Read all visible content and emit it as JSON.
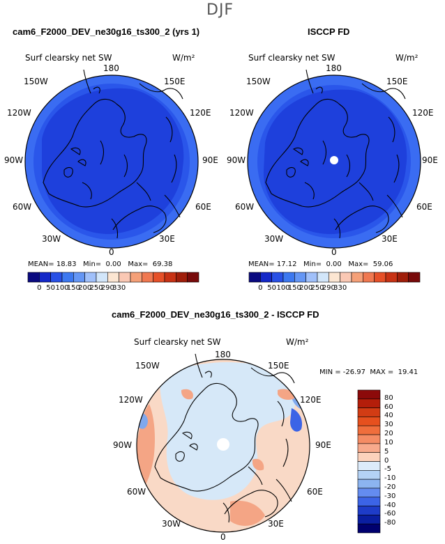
{
  "season_title": "DJF",
  "panels": [
    {
      "title": "cam6_F2000_DEV_ne30g16_ts300_2 (yrs 1)",
      "field_label": "Surf clearsky net SW",
      "units": "W/m²",
      "stats": {
        "mean_label": "MEAN=",
        "mean": "18.83",
        "min_label": "Min=",
        "min": "0.00",
        "max_label": "Max=",
        "max": "69.38"
      },
      "has_pole_hole": false
    },
    {
      "title": "ISCCP FD",
      "field_label": "Surf clearsky net SW",
      "units": "W/m²",
      "stats": {
        "mean_label": "MEAN=",
        "mean": "17.12",
        "min_label": "Min=",
        "min": "0.00",
        "max_label": "Max=",
        "max": "59.06"
      },
      "has_pole_hole": true
    }
  ],
  "colorbar_top": {
    "tick_labels": [
      "0",
      "50",
      "100",
      "150",
      "200",
      "250",
      "290",
      "330"
    ],
    "colors": [
      "#0a0a80",
      "#1428c8",
      "#2850e6",
      "#3c78f0",
      "#6496f5",
      "#a0c0fa",
      "#d2e6fa",
      "#fce6d2",
      "#fac8b4",
      "#f5a078",
      "#f07850",
      "#e65028",
      "#c83214",
      "#a01e0a",
      "#780a0a"
    ]
  },
  "diff_panel": {
    "title": "cam6_F2000_DEV_ne30g16_ts300_2 - ISCCP FD",
    "field_label": "Surf clearsky net SW",
    "units": "W/m²",
    "minmax": "MIN = -26.97  MAX =  19.41"
  },
  "colorbar_diff": {
    "tick_labels": [
      "80",
      "60",
      "40",
      "30",
      "20",
      "10",
      "5",
      "0",
      "-5",
      "-10",
      "-20",
      "-30",
      "-40",
      "-60",
      "-80"
    ],
    "colors": [
      "#8c0a0a",
      "#b41e0a",
      "#d23c14",
      "#e6501e",
      "#f06e3c",
      "#f58c64",
      "#f8aa8c",
      "#fcd2bc",
      "#dcebfa",
      "#b4d2f5",
      "#8cb4f0",
      "#648cf0",
      "#3c64e6",
      "#1e3cc8",
      "#0a1ea0",
      "#00006e"
    ]
  },
  "lon_labels": {
    "n180": "180",
    "e150": "150E",
    "w150": "150W",
    "e120": "120E",
    "w120": "120W",
    "e90": "90E",
    "w90": "90W",
    "e60": "60E",
    "w60": "60W",
    "e30": "30E",
    "w30": "30W",
    "s0": "0"
  },
  "colors": {
    "map_blue_dark": "#1e40dc",
    "map_blue_mid": "#2a56ea",
    "map_blue_edge": "#3a6cf2",
    "diff_base": "#f9d9c6",
    "diff_light_blue": "#d6e8f8",
    "diff_warm": "#f4a585",
    "diff_cool": "#7fa8ee"
  }
}
